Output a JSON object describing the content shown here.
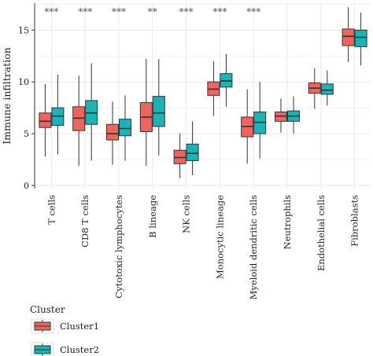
{
  "chart_data": {
    "type": "boxplot",
    "ylabel": "Immune infiltration",
    "xlabel": "",
    "ylim": [
      -0.3,
      17.6
    ],
    "yticks": [
      0,
      5,
      10,
      15
    ],
    "grid": true,
    "legend": {
      "title": "Cluster",
      "position": "bottom-left",
      "entries": [
        "Cluster1",
        "Cluster2"
      ]
    },
    "colors": {
      "Cluster1": "#F0645F",
      "Cluster2": "#1AB3B7",
      "grid": "#e9e9e9",
      "outline": "#333333"
    },
    "categories": [
      "T cells",
      "CD8 T cells",
      "Cytotoxic lymphocytes",
      "B lineage",
      "NK cells",
      "Monocytic lineage",
      "Myeloid dendritic cells",
      "Neutrophils",
      "Endothelial cells",
      "Fibroblasts"
    ],
    "significance": [
      "***",
      "***",
      "***",
      "**",
      "***",
      "***",
      "***",
      "",
      "",
      ""
    ],
    "series": [
      {
        "name": "Cluster1",
        "boxes": [
          {
            "min": 2.8,
            "q1": 5.6,
            "median": 6.2,
            "q3": 7.0,
            "max": 9.8
          },
          {
            "min": 1.9,
            "q1": 5.3,
            "median": 6.5,
            "q3": 7.6,
            "max": 10.6
          },
          {
            "min": 2.0,
            "q1": 4.4,
            "median": 5.0,
            "q3": 5.9,
            "max": 8.1
          },
          {
            "min": 1.9,
            "q1": 5.2,
            "median": 6.6,
            "q3": 8.0,
            "max": 12.2
          },
          {
            "min": 0.7,
            "q1": 2.1,
            "median": 2.7,
            "q3": 3.4,
            "max": 5.0
          },
          {
            "min": 6.7,
            "q1": 8.7,
            "median": 9.3,
            "q3": 10.0,
            "max": 12.0
          },
          {
            "min": 2.1,
            "q1": 4.7,
            "median": 5.7,
            "q3": 6.6,
            "max": 9.3
          },
          {
            "min": 5.1,
            "q1": 6.2,
            "median": 6.7,
            "q3": 7.1,
            "max": 8.4
          },
          {
            "min": 7.4,
            "q1": 8.9,
            "median": 9.4,
            "q3": 9.9,
            "max": 11.3
          },
          {
            "min": 11.9,
            "q1": 13.5,
            "median": 14.4,
            "q3": 15.1,
            "max": 17.2
          }
        ]
      },
      {
        "name": "Cluster2",
        "boxes": [
          {
            "min": 3.0,
            "q1": 5.8,
            "median": 6.7,
            "q3": 7.5,
            "max": 10.7
          },
          {
            "min": 2.4,
            "q1": 5.9,
            "median": 7.0,
            "q3": 8.2,
            "max": 11.8
          },
          {
            "min": 2.4,
            "q1": 4.8,
            "median": 5.5,
            "q3": 6.4,
            "max": 8.7
          },
          {
            "min": 2.9,
            "q1": 5.7,
            "median": 7.0,
            "q3": 8.6,
            "max": 12.2
          },
          {
            "min": 1.0,
            "q1": 2.4,
            "median": 3.1,
            "q3": 4.0,
            "max": 6.2
          },
          {
            "min": 7.6,
            "q1": 9.5,
            "median": 10.1,
            "q3": 10.8,
            "max": 12.7
          },
          {
            "min": 2.6,
            "q1": 5.0,
            "median": 6.1,
            "q3": 7.1,
            "max": 10.0
          },
          {
            "min": 5.0,
            "q1": 6.2,
            "median": 6.7,
            "q3": 7.2,
            "max": 8.6
          },
          {
            "min": 7.7,
            "q1": 8.8,
            "median": 9.2,
            "q3": 9.8,
            "max": 11.1
          },
          {
            "min": 11.6,
            "q1": 13.4,
            "median": 14.3,
            "q3": 15.0,
            "max": 16.7
          }
        ]
      }
    ]
  }
}
